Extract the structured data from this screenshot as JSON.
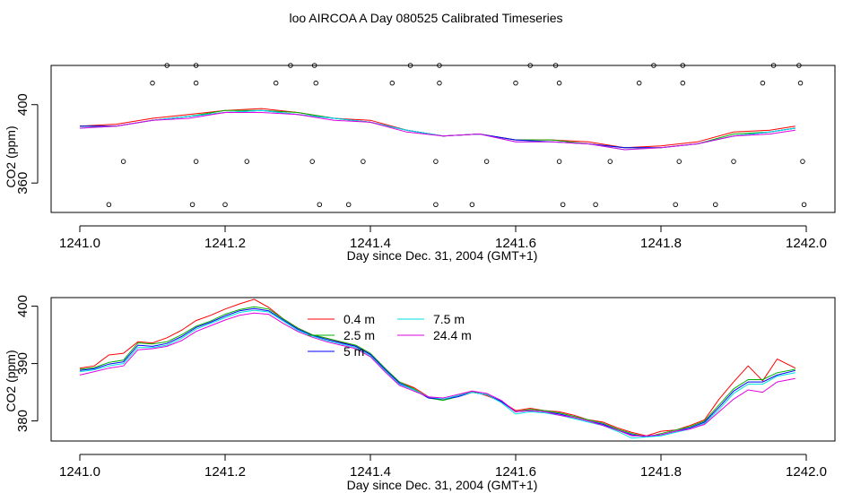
{
  "title": "loo AIRCOA A  Day 080525  Calibrated Timeseries",
  "colors": {
    "0.4 m": "#ff0000",
    "2.5 m": "#00b000",
    "5 m": "#0000ff",
    "7.5 m": "#00e0e0",
    "24.4 m": "#e000e0"
  },
  "chart_data": [
    {
      "type": "scatter",
      "panel": "top",
      "xlabel": "Day since Dec. 31, 2004 (GMT+1)",
      "ylabel": "CO2 (ppm)",
      "xlim": [
        1241.0,
        1242.0
      ],
      "ylim": [
        345,
        420
      ],
      "xticks": [
        "1241.0",
        "1241.2",
        "1241.4",
        "1241.6",
        "1241.8",
        "1242.0"
      ],
      "yticks": [
        "360",
        "400"
      ],
      "grid": false,
      "legend": "none",
      "calibration_points": {
        "x": [
          1241.04,
          1241.06,
          1241.1,
          1241.12,
          1241.155,
          1241.16,
          1241.16,
          1241.16,
          1241.2,
          1241.23,
          1241.27,
          1241.29,
          1241.32,
          1241.323,
          1241.325,
          1241.33,
          1241.37,
          1241.39,
          1241.43,
          1241.455,
          1241.49,
          1241.49,
          1241.495,
          1241.495,
          1241.54,
          1241.56,
          1241.6,
          1241.62,
          1241.655,
          1241.66,
          1241.66,
          1241.665,
          1241.71,
          1241.73,
          1241.77,
          1241.79,
          1241.82,
          1241.825,
          1241.83,
          1241.83,
          1241.875,
          1241.9,
          1241.94,
          1241.955,
          1241.99,
          1241.992,
          1241.995,
          1241.997
        ],
        "y": [
          349,
          371,
          411,
          420,
          349,
          371,
          411,
          420,
          349,
          371,
          411,
          420,
          371,
          420,
          411,
          349,
          349,
          371,
          411,
          420,
          349,
          371,
          411,
          420,
          349,
          371,
          411,
          420,
          420,
          371,
          411,
          349,
          349,
          371,
          411,
          420,
          349,
          371,
          411,
          420,
          349,
          371,
          411,
          420,
          420,
          411,
          371,
          349
        ]
      },
      "x": [
        1241.0,
        1241.05,
        1241.1,
        1241.15,
        1241.2,
        1241.25,
        1241.3,
        1241.35,
        1241.4,
        1241.45,
        1241.5,
        1241.55,
        1241.6,
        1241.65,
        1241.7,
        1241.75,
        1241.8,
        1241.85,
        1241.9,
        1241.95,
        1241.985
      ],
      "series": [
        {
          "name": "0.4 m",
          "values": [
            389,
            390,
            393,
            395,
            397,
            398,
            396,
            393,
            392,
            387,
            384,
            385,
            382,
            382,
            381,
            378,
            379,
            381,
            386,
            387,
            389
          ]
        },
        {
          "name": "2.5 m",
          "values": [
            389,
            389,
            392,
            394,
            397,
            397,
            396,
            393,
            391,
            387,
            384,
            385,
            382,
            382,
            380,
            378,
            378,
            380,
            385,
            386,
            388
          ]
        },
        {
          "name": "5 m",
          "values": [
            389,
            389,
            392,
            394,
            396,
            397,
            395,
            393,
            391,
            387,
            384,
            385,
            382,
            381,
            380,
            378,
            378,
            380,
            384,
            386,
            388
          ]
        },
        {
          "name": "7.5 m",
          "values": [
            388,
            389,
            392,
            394,
            396,
            397,
            395,
            393,
            391,
            387,
            384,
            385,
            381,
            381,
            380,
            377,
            378,
            380,
            384,
            386,
            388
          ]
        },
        {
          "name": "24.4 m",
          "values": [
            388,
            389,
            392,
            393,
            396,
            396,
            395,
            392,
            391,
            386,
            384,
            385,
            381,
            381,
            380,
            377,
            378,
            380,
            384,
            385,
            387
          ]
        }
      ]
    },
    {
      "type": "line",
      "panel": "bottom",
      "xlabel": "Day since Dec. 31, 2004 (GMT+1)",
      "ylabel": "CO2 (ppm)",
      "xlim": [
        1241.0,
        1242.0
      ],
      "ylim": [
        376.5,
        401.5
      ],
      "xticks": [
        "1241.0",
        "1241.2",
        "1241.4",
        "1241.6",
        "1241.8",
        "1242.0"
      ],
      "yticks": [
        "380",
        "390",
        "400"
      ],
      "grid": false,
      "legend": "top-left",
      "x": [
        1241.0,
        1241.02,
        1241.04,
        1241.06,
        1241.08,
        1241.1,
        1241.12,
        1241.14,
        1241.16,
        1241.18,
        1241.2,
        1241.22,
        1241.24,
        1241.26,
        1241.28,
        1241.3,
        1241.32,
        1241.34,
        1241.36,
        1241.38,
        1241.4,
        1241.42,
        1241.44,
        1241.46,
        1241.48,
        1241.5,
        1241.52,
        1241.54,
        1241.56,
        1241.58,
        1241.6,
        1241.62,
        1241.64,
        1241.66,
        1241.68,
        1241.7,
        1241.72,
        1241.74,
        1241.76,
        1241.78,
        1241.8,
        1241.82,
        1241.84,
        1241.86,
        1241.88,
        1241.9,
        1241.92,
        1241.94,
        1241.96,
        1241.985
      ],
      "series": [
        {
          "name": "0.4 m",
          "values": [
            389.2,
            389.6,
            391.5,
            391.8,
            393.8,
            393.6,
            394.5,
            395.8,
            397.5,
            398.4,
            399.5,
            400.4,
            401.2,
            399.8,
            397.8,
            396.2,
            395.0,
            394.4,
            393.7,
            393.0,
            391.6,
            389.0,
            386.8,
            385.8,
            384.2,
            383.6,
            384.4,
            385.2,
            384.4,
            383.4,
            381.8,
            382.2,
            381.8,
            381.6,
            381.0,
            380.2,
            379.8,
            378.8,
            378.0,
            377.4,
            378.2,
            378.4,
            379.2,
            380.2,
            383.8,
            386.8,
            389.6,
            387.0,
            390.8,
            389.2
          ]
        },
        {
          "name": "2.5 m",
          "values": [
            389.0,
            389.3,
            390.2,
            390.6,
            393.6,
            393.4,
            393.8,
            395.0,
            396.5,
            397.4,
            398.6,
            399.4,
            399.9,
            399.5,
            397.8,
            396.2,
            395.0,
            394.4,
            393.8,
            393.2,
            391.8,
            389.2,
            386.8,
            385.6,
            384.0,
            383.6,
            384.2,
            385.0,
            384.6,
            383.4,
            381.6,
            382.0,
            381.8,
            381.4,
            380.8,
            380.2,
            379.6,
            378.6,
            377.8,
            377.2,
            377.8,
            378.4,
            379.0,
            380.0,
            382.8,
            385.6,
            387.2,
            387.2,
            388.4,
            389.0
          ]
        },
        {
          "name": "5 m",
          "values": [
            388.8,
            389.1,
            389.9,
            390.3,
            393.2,
            393.0,
            393.5,
            394.7,
            396.3,
            397.2,
            398.3,
            399.2,
            399.6,
            399.2,
            397.6,
            396.0,
            394.9,
            394.2,
            393.6,
            393.0,
            391.6,
            389.0,
            386.6,
            385.4,
            384.0,
            383.8,
            384.2,
            385.0,
            384.6,
            383.4,
            381.6,
            381.8,
            381.6,
            381.2,
            380.6,
            380.0,
            379.4,
            378.4,
            377.6,
            377.2,
            377.6,
            378.2,
            378.8,
            379.8,
            382.4,
            385.2,
            386.8,
            386.8,
            388.0,
            388.8
          ]
        },
        {
          "name": "7.5 m",
          "values": [
            388.6,
            388.9,
            389.6,
            390.0,
            392.8,
            392.8,
            393.2,
            394.4,
            396.0,
            397.0,
            398.0,
            398.9,
            399.3,
            399.0,
            397.4,
            395.8,
            394.8,
            394.0,
            393.4,
            392.8,
            391.4,
            388.8,
            386.4,
            385.4,
            384.2,
            383.8,
            384.4,
            385.0,
            384.6,
            383.2,
            381.2,
            381.6,
            381.4,
            381.0,
            380.4,
            379.8,
            379.2,
            378.2,
            377.0,
            377.2,
            377.4,
            378.0,
            378.6,
            379.6,
            382.0,
            384.8,
            386.4,
            386.4,
            387.8,
            388.4
          ]
        },
        {
          "name": "24.4 m",
          "values": [
            388.0,
            388.6,
            389.2,
            389.6,
            392.4,
            392.6,
            393.0,
            394.0,
            395.6,
            396.6,
            397.6,
            398.4,
            398.8,
            398.6,
            397.0,
            395.6,
            394.6,
            393.8,
            393.2,
            392.6,
            391.2,
            388.6,
            386.2,
            385.2,
            384.2,
            384.0,
            384.6,
            385.2,
            384.8,
            383.6,
            381.6,
            381.8,
            381.6,
            381.0,
            380.6,
            380.0,
            379.2,
            378.4,
            377.4,
            377.4,
            377.6,
            378.2,
            378.6,
            379.4,
            381.6,
            383.8,
            385.4,
            385.0,
            386.8,
            387.4
          ]
        }
      ]
    }
  ]
}
